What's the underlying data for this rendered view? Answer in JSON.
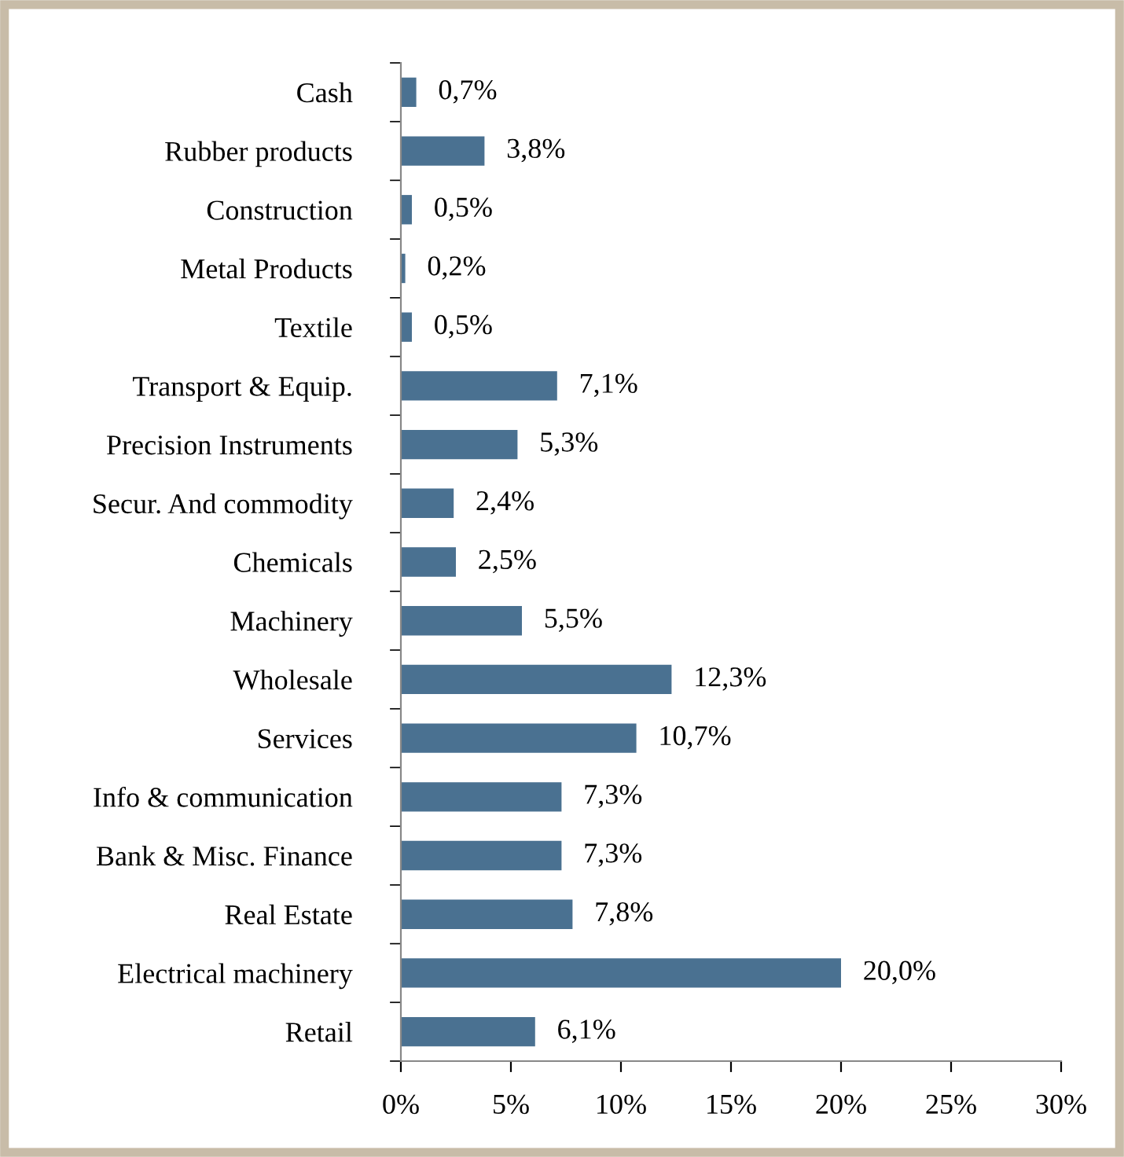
{
  "chart_data": {
    "type": "bar",
    "orientation": "horizontal",
    "categories": [
      "Cash",
      "Rubber products",
      "Construction",
      "Metal Products",
      "Textile",
      "Transport & Equip.",
      "Precision Instruments",
      "Secur. And commodity",
      "Chemicals",
      "Machinery",
      "Wholesale",
      "Services",
      "Info & communication",
      "Bank & Misc. Finance",
      "Real Estate",
      "Electrical machinery",
      "Retail"
    ],
    "values": [
      0.7,
      3.8,
      0.5,
      0.2,
      0.5,
      7.1,
      5.3,
      2.4,
      2.5,
      5.5,
      12.3,
      10.7,
      7.3,
      7.3,
      7.8,
      20.0,
      6.1
    ],
    "value_labels": [
      "0,7%",
      "3,8%",
      "0,5%",
      "0,2%",
      "0,5%",
      "7,1%",
      "5,3%",
      "2,4%",
      "2,5%",
      "5,5%",
      "12,3%",
      "10,7%",
      "7,3%",
      "7,3%",
      "7,8%",
      "20,0%",
      "6,1%"
    ],
    "color": "#4a7191",
    "xlim": [
      0,
      30
    ],
    "xticks": [
      {
        "value": 0,
        "label": "0%"
      },
      {
        "value": 5,
        "label": "5%"
      },
      {
        "value": 10,
        "label": "10%"
      },
      {
        "value": 15,
        "label": "15%"
      },
      {
        "value": 20,
        "label": "20%"
      },
      {
        "value": 25,
        "label": "25%"
      },
      {
        "value": 30,
        "label": "30%"
      }
    ],
    "grid": false,
    "legend": false
  }
}
